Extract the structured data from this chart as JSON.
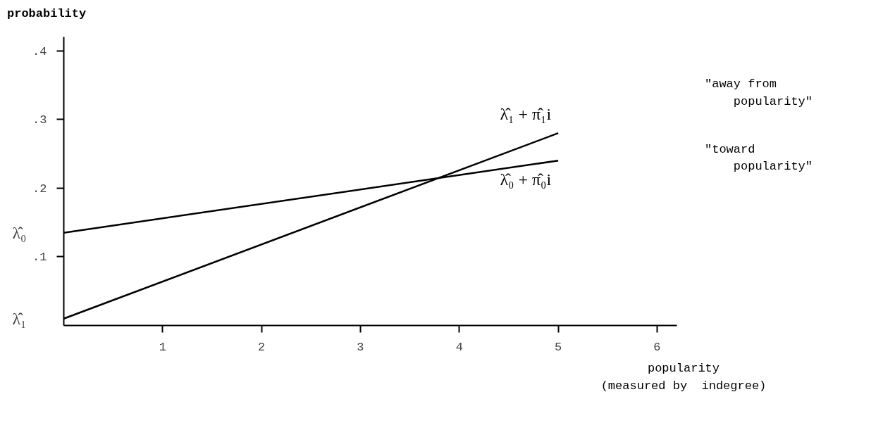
{
  "chart_data": {
    "type": "line",
    "xlabel": "popularity\n(measured by  indegree)",
    "ylabel": "probability",
    "x": [
      0,
      5
    ],
    "series": [
      {
        "name": "λ̂₁ + π̂₁i",
        "color": "#000000",
        "values": [
          0.01,
          0.28
        ]
      },
      {
        "name": "λ̂₀ + π̂₀i",
        "color": "#000000",
        "values": [
          0.135,
          0.24
        ]
      }
    ],
    "xlim": [
      0,
      6.2
    ],
    "ylim": [
      0,
      0.42
    ],
    "xticks": [
      1,
      2,
      3,
      4,
      5,
      6
    ],
    "yticks": [
      {
        "value": 0.1,
        "label": ".1"
      },
      {
        "value": 0.2,
        "label": ".2"
      },
      {
        "value": 0.3,
        "label": ".3"
      },
      {
        "value": 0.4,
        "label": ".4"
      }
    ],
    "annotations": [
      {
        "text": "λ̂₀",
        "x": 0,
        "y": 0.135
      },
      {
        "text": "λ̂₁",
        "x": 0,
        "y": 0.01
      },
      "\"away from\n    popularity\"",
      "\"toward\n    popularity\""
    ],
    "grid": false
  }
}
